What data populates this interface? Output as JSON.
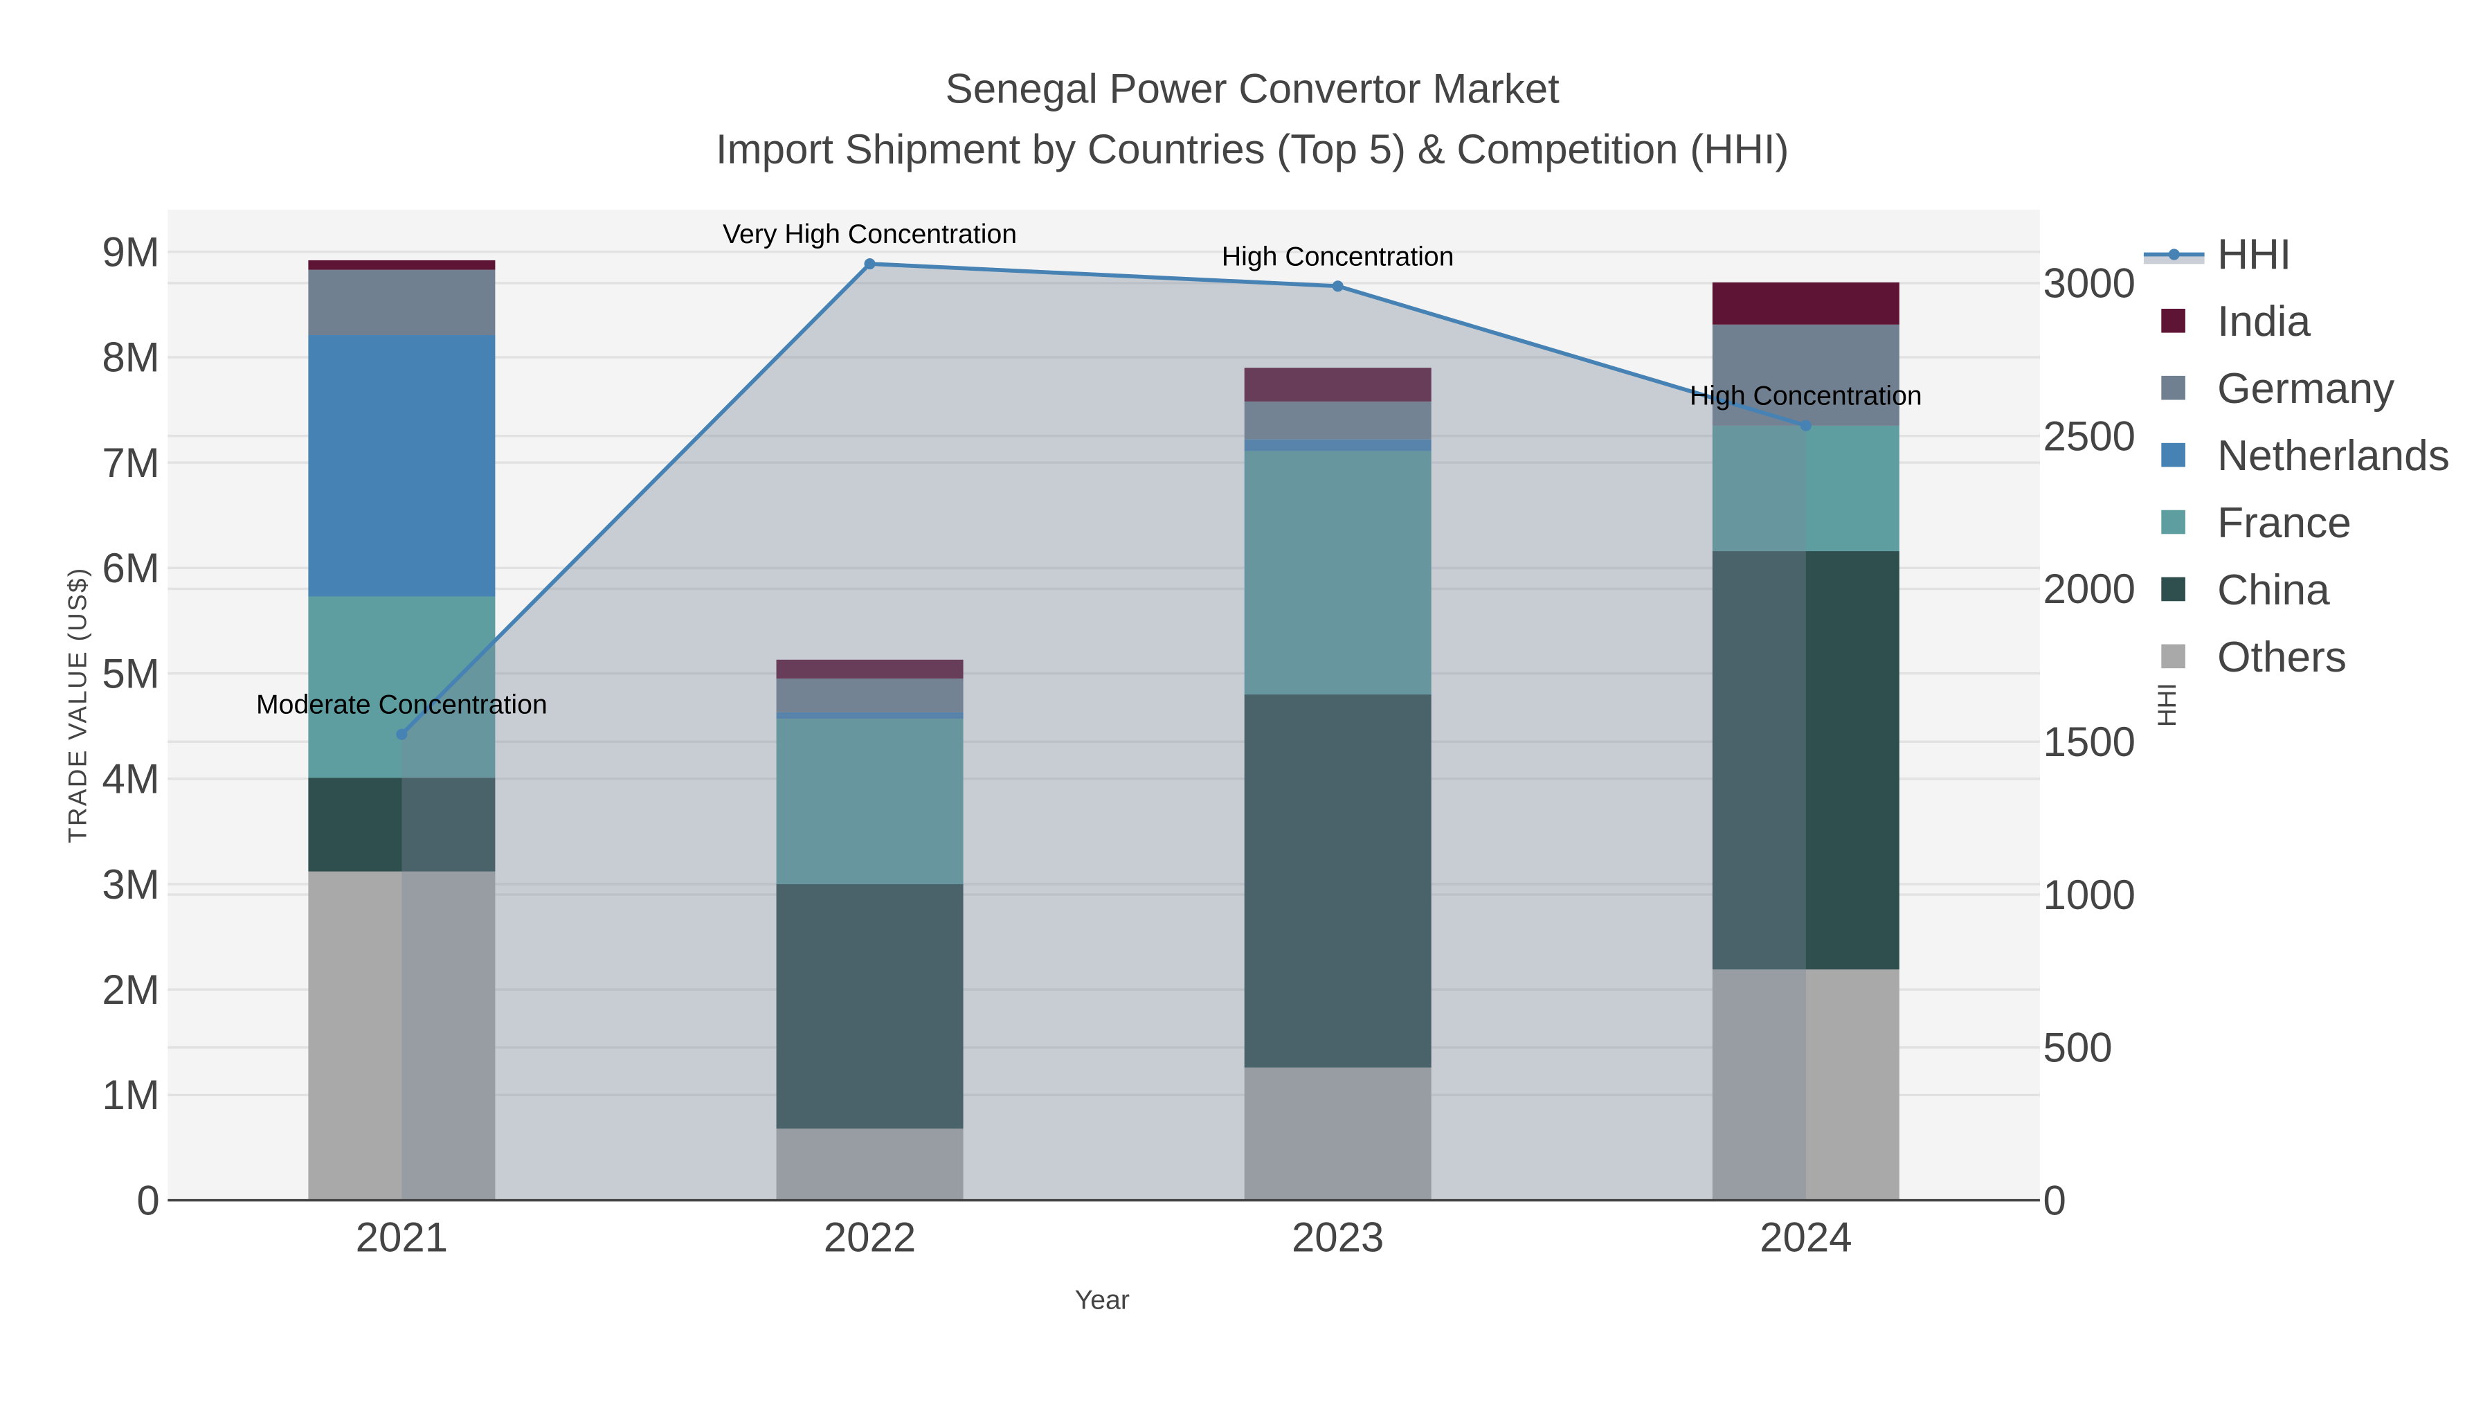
{
  "chart_data": {
    "type": "bar",
    "title": "Senegal Power Convertor Market",
    "subtitle": "Import Shipment by Countries (Top 5) & Competition (HHI)",
    "xlabel": "Year",
    "ylabel": "TRADE VALUE (US$)",
    "y2label": "HHI",
    "categories": [
      "2021",
      "2022",
      "2023",
      "2024"
    ],
    "ylim": [
      0,
      9400000
    ],
    "y2lim": [
      0,
      3240
    ],
    "yticks": [
      0,
      1000000,
      2000000,
      3000000,
      4000000,
      5000000,
      6000000,
      7000000,
      8000000,
      9000000
    ],
    "ytick_labels": [
      "0",
      "1M",
      "2M",
      "3M",
      "4M",
      "5M",
      "6M",
      "7M",
      "8M",
      "9M"
    ],
    "y2ticks": [
      0,
      500,
      1000,
      1500,
      2000,
      2500,
      3000
    ],
    "y2tick_labels": [
      "0",
      "500",
      "1000",
      "1500",
      "2000",
      "2500",
      "3000"
    ],
    "grid": true,
    "legend_position": "right",
    "series": [
      {
        "name": "Others",
        "color": "#a9a9a9",
        "values": [
          3120000,
          680000,
          1260000,
          2190000
        ]
      },
      {
        "name": "China",
        "color": "#2f4f4f",
        "values": [
          890000,
          2320000,
          3540000,
          3970000
        ]
      },
      {
        "name": "France",
        "color": "#5f9ea0",
        "values": [
          1720000,
          1570000,
          2310000,
          1190000
        ]
      },
      {
        "name": "Netherlands",
        "color": "#4682b4",
        "values": [
          2480000,
          60000,
          110000,
          0
        ]
      },
      {
        "name": "Germany",
        "color": "#708090",
        "values": [
          620000,
          320000,
          360000,
          960000
        ]
      },
      {
        "name": "India",
        "color": "#5e1434",
        "values": [
          90000,
          180000,
          320000,
          400000
        ]
      }
    ],
    "hhi": {
      "name": "HHI",
      "type": "line",
      "color": "#4682b4",
      "values": [
        1524,
        3063,
        2990,
        2534
      ],
      "annotations": [
        "Moderate Concentration",
        "Very High Concentration",
        "High Concentration",
        "High Concentration"
      ]
    },
    "legend_order": [
      "HHI",
      "India",
      "Germany",
      "Netherlands",
      "France",
      "China",
      "Others"
    ]
  }
}
